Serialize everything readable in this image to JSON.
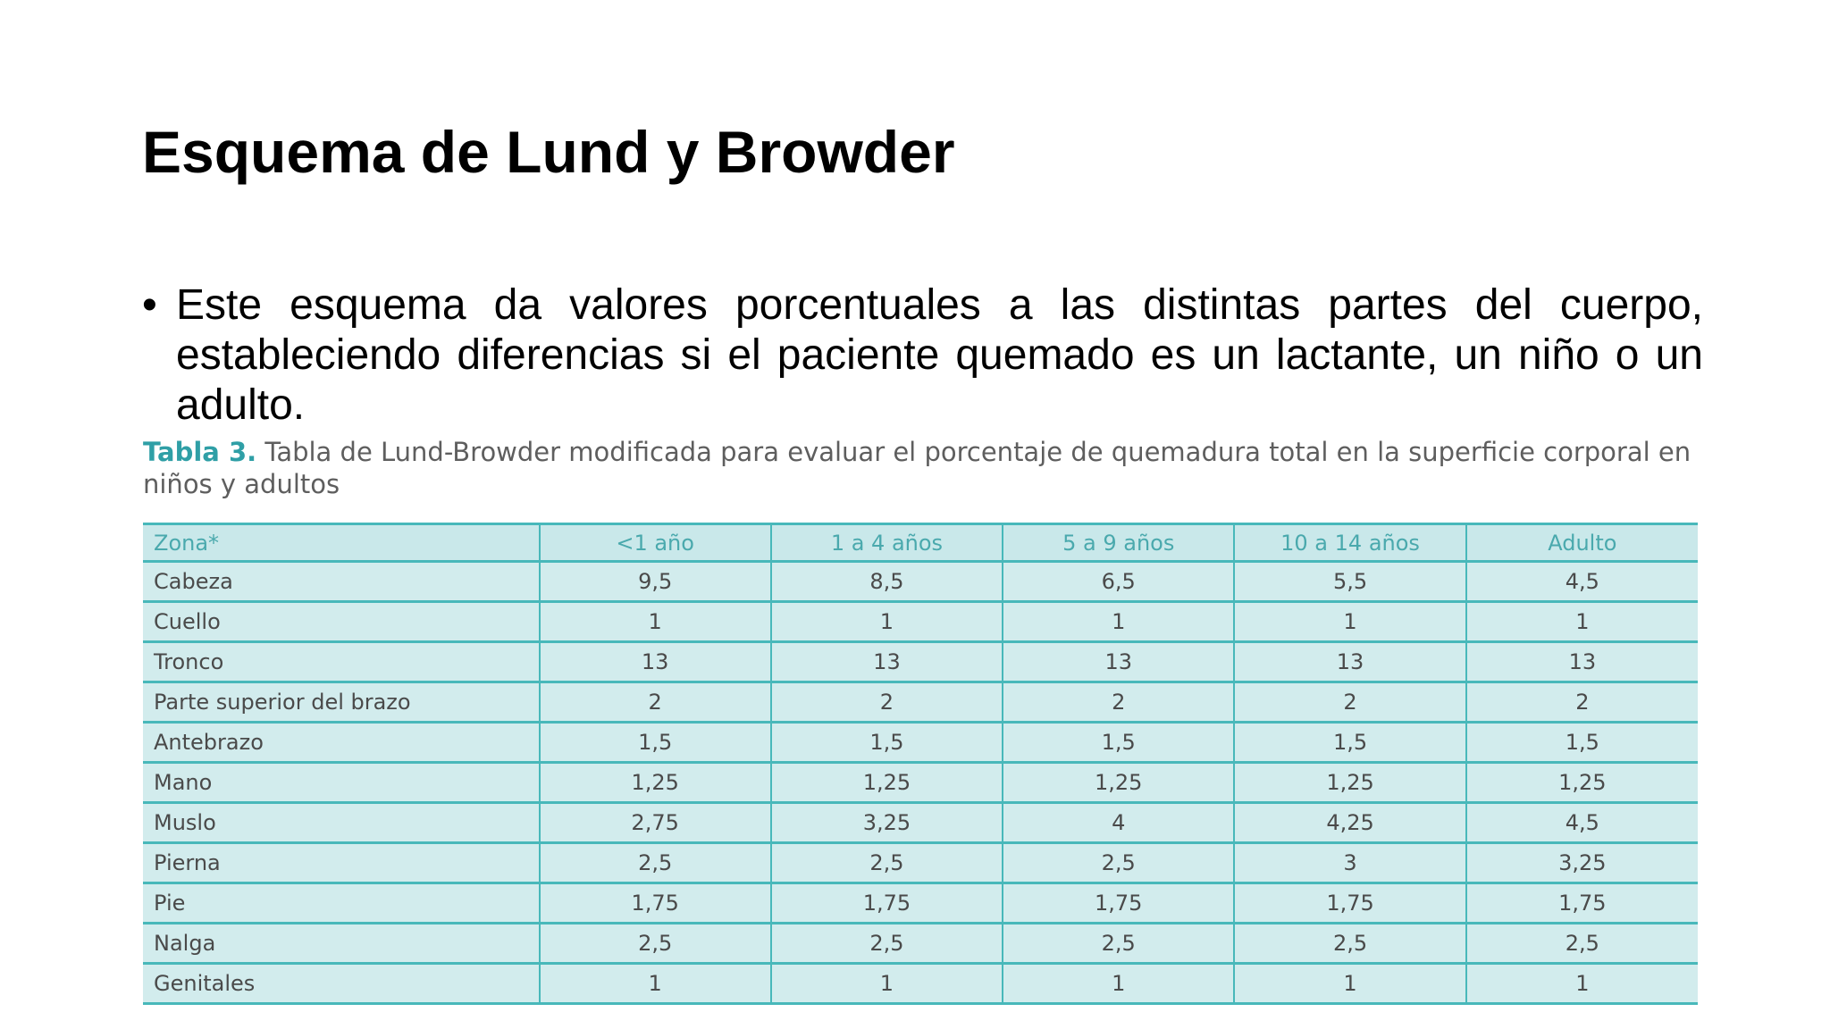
{
  "slide": {
    "title": "Esquema de Lund y Browder",
    "bullet_symbol": "•",
    "bullet_text": "Este esquema da valores porcentuales a las distintas partes del cuerpo, estableciendo diferencias si el paciente quemado es un lactante, un niño o un adulto."
  },
  "caption": {
    "label": "Tabla 3.",
    "text": "Tabla de Lund-Browder modificada para evaluar el porcentaje de quemadura total en la superficie corporal en niños y adultos",
    "label_color": "#2f9fa6"
  },
  "table": {
    "header_color": "#4aa9ad",
    "fill_color": "#d2eced",
    "line_color": "#48b8ba",
    "headers": [
      "Zona*",
      "<1 año",
      "1 a 4 años",
      "5 a 9 años",
      "10 a 14 años",
      "Adulto"
    ],
    "rows": [
      [
        "Cabeza",
        "9,5",
        "8,5",
        "6,5",
        "5,5",
        "4,5"
      ],
      [
        "Cuello",
        "1",
        "1",
        "1",
        "1",
        "1"
      ],
      [
        "Tronco",
        "13",
        "13",
        "13",
        "13",
        "13"
      ],
      [
        "Parte superior del brazo",
        "2",
        "2",
        "2",
        "2",
        "2"
      ],
      [
        "Antebrazo",
        "1,5",
        "1,5",
        "1,5",
        "1,5",
        "1,5"
      ],
      [
        "Mano",
        "1,25",
        "1,25",
        "1,25",
        "1,25",
        "1,25"
      ],
      [
        "Muslo",
        "2,75",
        "3,25",
        "4",
        "4,25",
        "4,5"
      ],
      [
        "Pierna",
        "2,5",
        "2,5",
        "2,5",
        "3",
        "3,25"
      ],
      [
        "Pie",
        "1,75",
        "1,75",
        "1,75",
        "1,75",
        "1,75"
      ],
      [
        "Nalga",
        "2,5",
        "2,5",
        "2,5",
        "2,5",
        "2,5"
      ],
      [
        "Genitales",
        "1",
        "1",
        "1",
        "1",
        "1"
      ]
    ]
  }
}
